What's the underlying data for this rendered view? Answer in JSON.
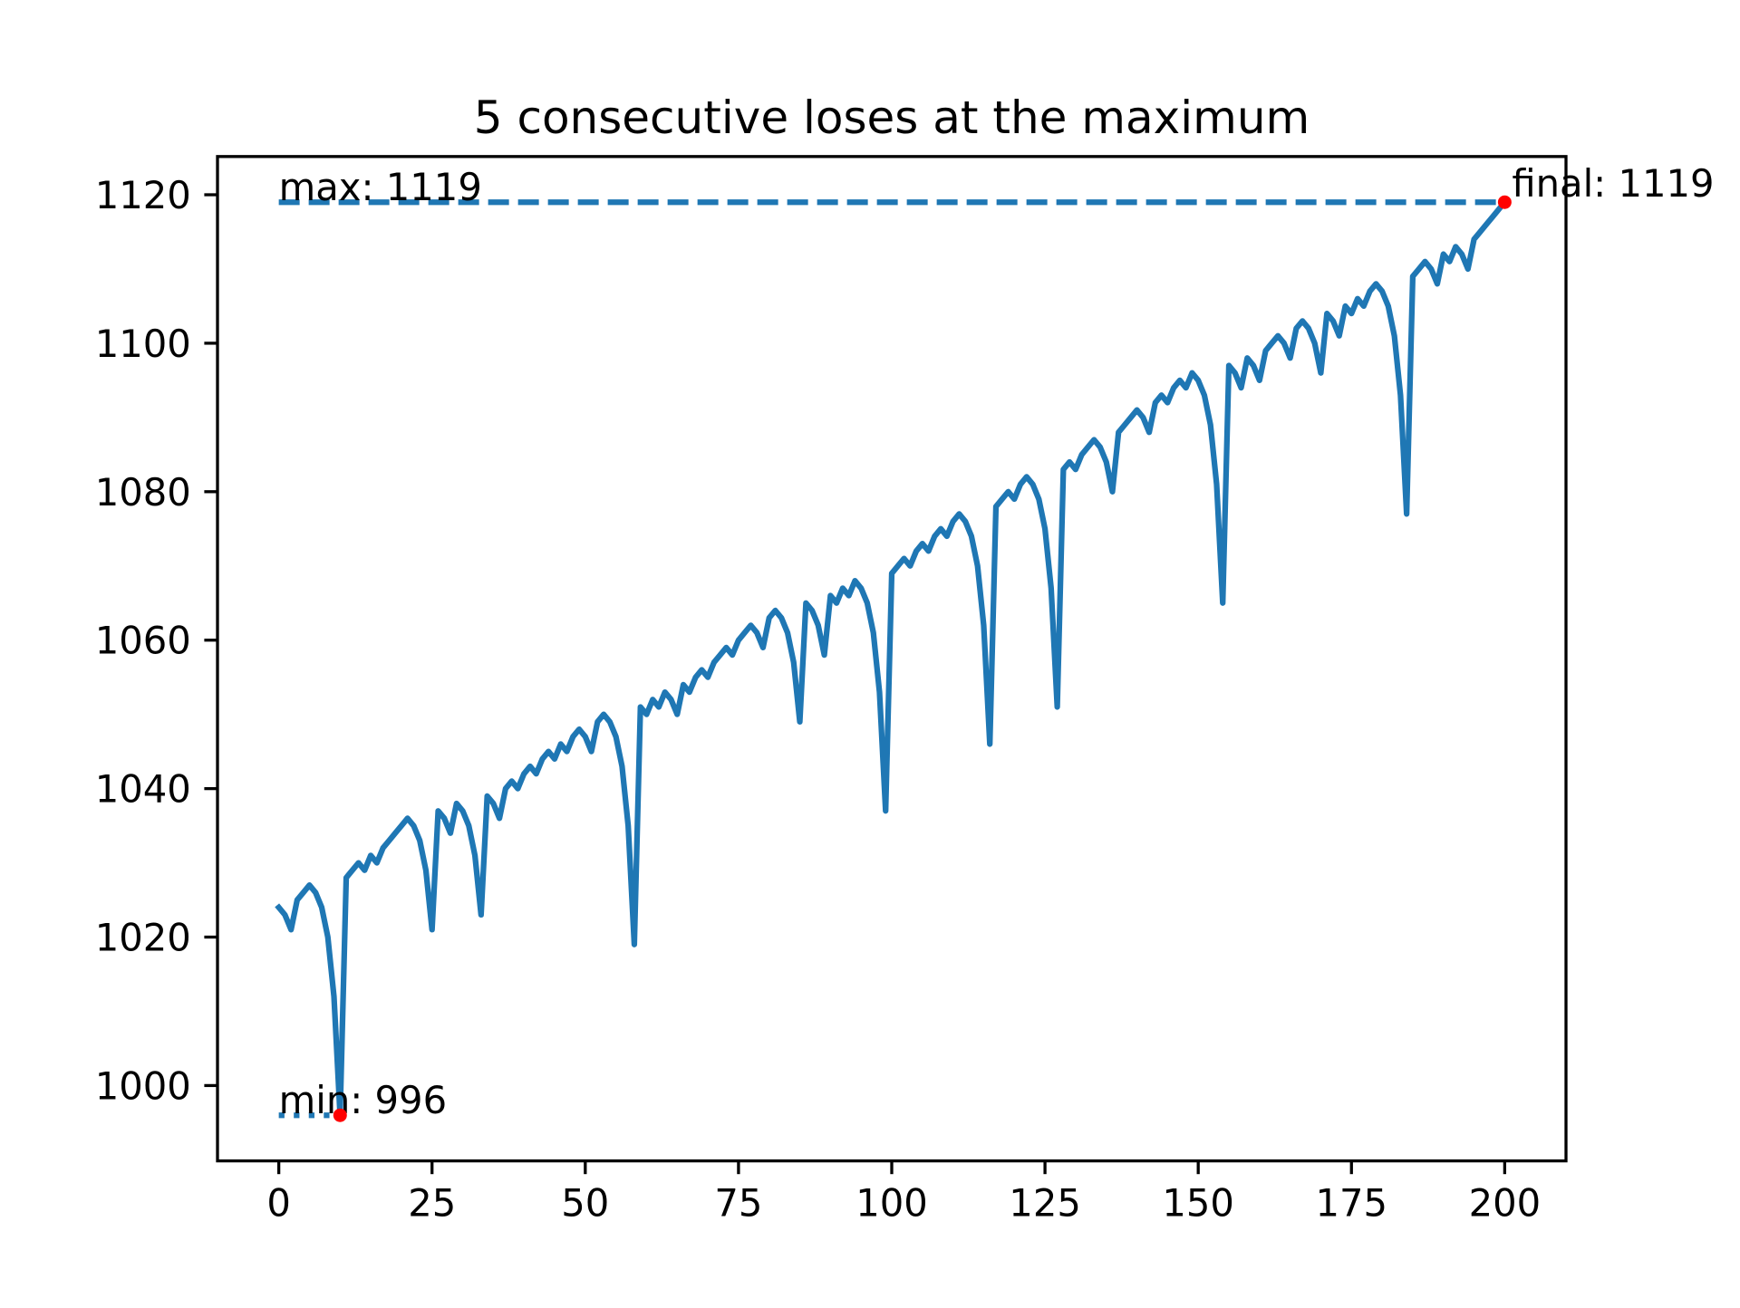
{
  "chart_data": {
    "type": "line",
    "title": "5 consecutive loses at the maximum",
    "x": [
      0,
      1,
      2,
      3,
      4,
      5,
      6,
      7,
      8,
      9,
      10,
      11,
      12,
      13,
      14,
      15,
      16,
      17,
      18,
      19,
      20,
      21,
      22,
      23,
      24,
      25,
      26,
      27,
      28,
      29,
      30,
      31,
      32,
      33,
      34,
      35,
      36,
      37,
      38,
      39,
      40,
      41,
      42,
      43,
      44,
      45,
      46,
      47,
      48,
      49,
      50,
      51,
      52,
      53,
      54,
      55,
      56,
      57,
      58,
      59,
      60,
      61,
      62,
      63,
      64,
      65,
      66,
      67,
      68,
      69,
      70,
      71,
      72,
      73,
      74,
      75,
      76,
      77,
      78,
      79,
      80,
      81,
      82,
      83,
      84,
      85,
      86,
      87,
      88,
      89,
      90,
      91,
      92,
      93,
      94,
      95,
      96,
      97,
      98,
      99,
      100,
      101,
      102,
      103,
      104,
      105,
      106,
      107,
      108,
      109,
      110,
      111,
      112,
      113,
      114,
      115,
      116,
      117,
      118,
      119,
      120,
      121,
      122,
      123,
      124,
      125,
      126,
      127,
      128,
      129,
      130,
      131,
      132,
      133,
      134,
      135,
      136,
      137,
      138,
      139,
      140,
      141,
      142,
      143,
      144,
      145,
      146,
      147,
      148,
      149,
      150,
      151,
      152,
      153,
      154,
      155,
      156,
      157,
      158,
      159,
      160,
      161,
      162,
      163,
      164,
      165,
      166,
      167,
      168,
      169,
      170,
      171,
      172,
      173,
      174,
      175,
      176,
      177,
      178,
      179,
      180,
      181,
      182,
      183,
      184,
      185,
      186,
      187,
      188,
      189,
      190,
      191,
      192,
      193,
      194,
      195,
      196,
      197,
      198,
      199,
      200
    ],
    "series": [
      {
        "color": "#1f77b4",
        "values": [
          1024,
          1023,
          1021,
          1025,
          1026,
          1027,
          1026,
          1024,
          1020,
          1012,
          996,
          1028,
          1029,
          1030,
          1029,
          1031,
          1030,
          1032,
          1033,
          1034,
          1035,
          1036,
          1035,
          1033,
          1029,
          1021,
          1037,
          1036,
          1034,
          1038,
          1037,
          1035,
          1031,
          1023,
          1039,
          1038,
          1036,
          1040,
          1041,
          1040,
          1042,
          1043,
          1042,
          1044,
          1045,
          1044,
          1046,
          1045,
          1047,
          1048,
          1047,
          1045,
          1049,
          1050,
          1049,
          1047,
          1043,
          1035,
          1019,
          1051,
          1050,
          1052,
          1051,
          1053,
          1052,
          1050,
          1054,
          1053,
          1055,
          1056,
          1055,
          1057,
          1058,
          1059,
          1058,
          1060,
          1061,
          1062,
          1061,
          1059,
          1063,
          1064,
          1063,
          1061,
          1057,
          1049,
          1065,
          1064,
          1062,
          1058,
          1066,
          1065,
          1067,
          1066,
          1068,
          1067,
          1065,
          1061,
          1053,
          1037,
          1069,
          1070,
          1071,
          1070,
          1072,
          1073,
          1072,
          1074,
          1075,
          1074,
          1076,
          1077,
          1076,
          1074,
          1070,
          1062,
          1046,
          1078,
          1079,
          1080,
          1079,
          1081,
          1082,
          1081,
          1079,
          1075,
          1067,
          1051,
          1083,
          1084,
          1083,
          1085,
          1086,
          1087,
          1086,
          1084,
          1080,
          1088,
          1089,
          1090,
          1091,
          1090,
          1088,
          1092,
          1093,
          1092,
          1094,
          1095,
          1094,
          1096,
          1095,
          1093,
          1089,
          1081,
          1065,
          1097,
          1096,
          1094,
          1098,
          1097,
          1095,
          1099,
          1100,
          1101,
          1100,
          1098,
          1102,
          1103,
          1102,
          1100,
          1096,
          1104,
          1103,
          1101,
          1105,
          1104,
          1106,
          1105,
          1107,
          1108,
          1107,
          1105,
          1101,
          1093,
          1077,
          1109,
          1110,
          1111,
          1110,
          1108,
          1112,
          1111,
          1113,
          1112,
          1110,
          1114,
          1115,
          1116,
          1117,
          1118,
          1119
        ]
      }
    ],
    "xlim": [
      -10,
      210
    ],
    "xticks": [
      0,
      25,
      50,
      75,
      100,
      125,
      150,
      175,
      200
    ],
    "ylim": [
      989.85,
      1125.15
    ],
    "yticks": [
      1000,
      1020,
      1040,
      1060,
      1080,
      1100,
      1120
    ],
    "marker_color": "#ff0000",
    "annotations": [
      {
        "label": "max: 1119",
        "value": 1119,
        "line": "dashed"
      },
      {
        "label": "min: 996",
        "value": 996,
        "line": "dotted"
      },
      {
        "label": "final: 1119",
        "value": 1119
      }
    ]
  }
}
